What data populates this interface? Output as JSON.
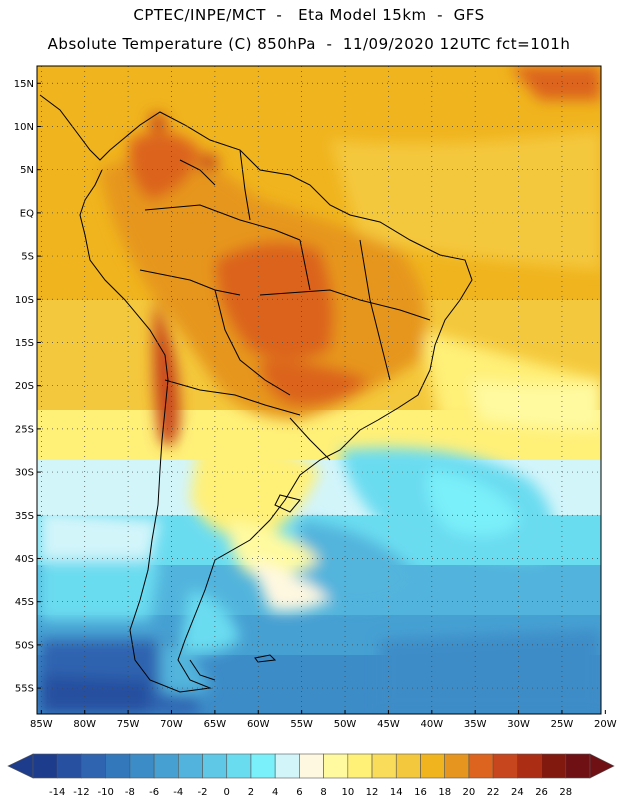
{
  "header": {
    "line1": "CPTEC/INPE/MCT  -   Eta Model 15km  -  GFS",
    "line2": "Absolute Temperature (C) 850hPa  -  11/09/2020 12UTC fct=101h"
  },
  "map": {
    "lat_labels": [
      "15N",
      "10N",
      "5N",
      "EQ",
      "5S",
      "10S",
      "15S",
      "20S",
      "25S",
      "30S",
      "35S",
      "40S",
      "45S",
      "50S",
      "55S"
    ],
    "lat_values": [
      15,
      10,
      5,
      0,
      -5,
      -10,
      -15,
      -20,
      -25,
      -30,
      -35,
      -40,
      -45,
      -50,
      -55
    ],
    "lon_labels": [
      "85W",
      "80W",
      "75W",
      "70W",
      "65W",
      "60W",
      "55W",
      "50W",
      "45W",
      "40W",
      "35W",
      "30W",
      "25W",
      "20W"
    ],
    "lon_values": [
      -85,
      -80,
      -75,
      -70,
      -65,
      -60,
      -55,
      -50,
      -45,
      -40,
      -35,
      -30,
      -25,
      -20
    ],
    "extent": {
      "lon_min": -85.5,
      "lon_max": -20.5,
      "lat_min": -58,
      "lat_max": 17
    }
  },
  "colorbar": {
    "labels": [
      "-14",
      "-12",
      "-10",
      "-8",
      "-6",
      "-4",
      "-2",
      "0",
      "2",
      "4",
      "6",
      "8",
      "10",
      "12",
      "14",
      "16",
      "18",
      "20",
      "22",
      "24",
      "26",
      "28"
    ],
    "colors": [
      "#1e3c8c",
      "#2850a0",
      "#2e64b0",
      "#3478bc",
      "#3c8cc8",
      "#46a0d2",
      "#52b4dc",
      "#5ec8e6",
      "#6adcf0",
      "#7af0fa",
      "#d2f5fa",
      "#fff8e0",
      "#fffaa0",
      "#fff078",
      "#f8dc5a",
      "#f4c83c",
      "#f0b41e",
      "#e6961e",
      "#dc641e",
      "#c8461e",
      "#aa2d14",
      "#82190f",
      "#6e1014"
    ]
  }
}
